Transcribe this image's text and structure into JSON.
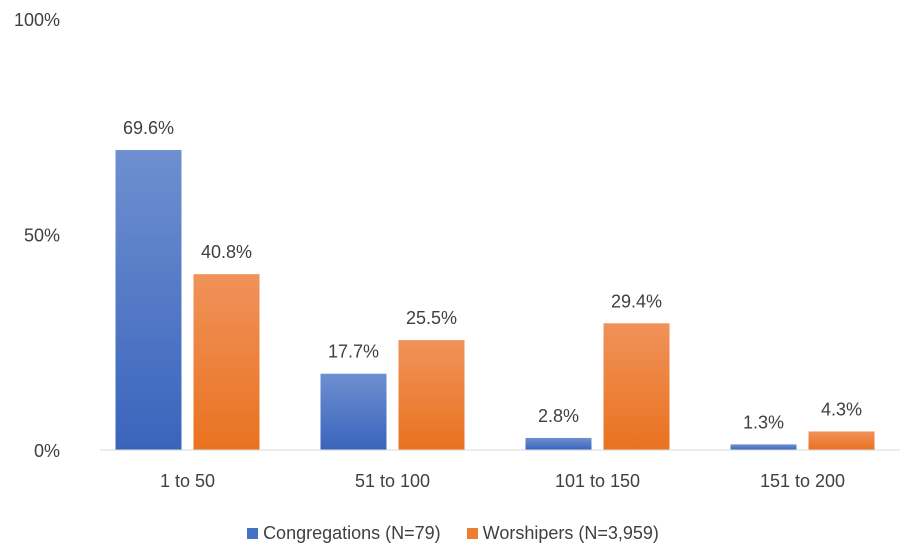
{
  "chart_data": {
    "type": "bar",
    "categories": [
      "1 to 50",
      "51 to 100",
      "101 to 150",
      "151 to 200"
    ],
    "series": [
      {
        "name": "Congregations (N=79)",
        "values": [
          69.6,
          17.7,
          2.8,
          1.3
        ],
        "labels": [
          "69.6%",
          "17.7%",
          "2.8%",
          "1.3%"
        ],
        "color": "#4472C4"
      },
      {
        "name": "Worshipers (N=3,959)",
        "values": [
          40.8,
          25.5,
          29.4,
          4.3
        ],
        "labels": [
          "40.8%",
          "25.5%",
          "29.4%",
          "4.3%"
        ],
        "color": "#ED7D31"
      }
    ],
    "y_ticks": [
      "0%",
      "50%",
      "100%"
    ],
    "y_tick_values": [
      0,
      50,
      100
    ],
    "ylim": [
      0,
      100
    ],
    "legend_position": "bottom",
    "grid": false
  }
}
